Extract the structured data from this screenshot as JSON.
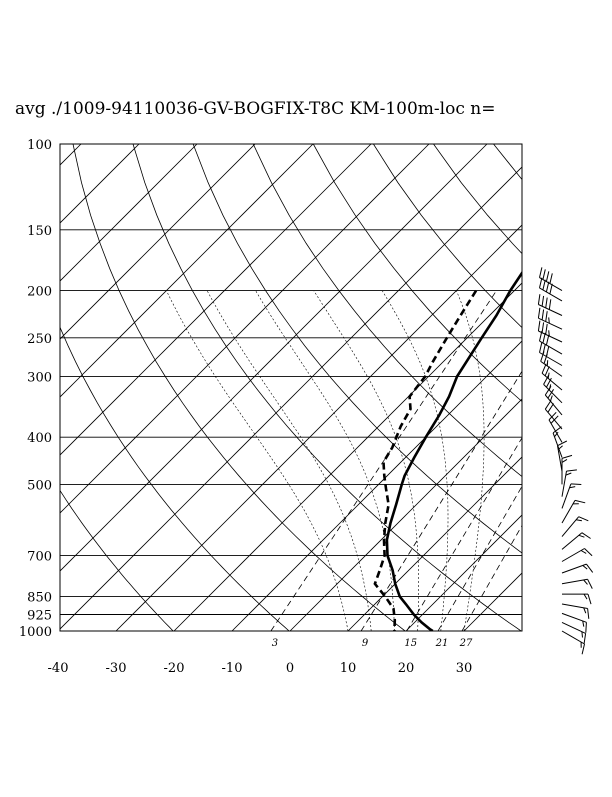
{
  "chart_data": {
    "type": "line",
    "title": "avg ./1009-94110036-GV-BOGFIX-T8C KM-100m-loc n=",
    "xlim": [
      -40,
      40
    ],
    "ylim": [
      1000,
      100
    ],
    "y_scale": "log",
    "x_tick_labels": [
      "-40",
      "-30",
      "-20",
      "-10",
      "0",
      "10",
      "20",
      "30"
    ],
    "x_ticks": [
      -40,
      -30,
      -20,
      -10,
      0,
      10,
      20,
      30
    ],
    "y_tick_labels": [
      "100",
      "150",
      "200",
      "250",
      "300",
      "400",
      "500",
      "700",
      "850",
      "925",
      "1000"
    ],
    "y_ticks": [
      100,
      150,
      200,
      250,
      300,
      400,
      500,
      700,
      850,
      925,
      1000
    ],
    "mixing_ratio_labels": [
      {
        "text": "3",
        "value": 3
      },
      {
        "text": "9",
        "value": 9
      },
      {
        "text": "15",
        "value": 15
      },
      {
        "text": "21",
        "value": 21
      },
      {
        "text": "27",
        "value": 27
      }
    ],
    "series": [
      {
        "style": "solid",
        "points": [
          [
            100,
            -13.0
          ],
          [
            110,
            -17.0
          ],
          [
            122,
            -21.0
          ],
          [
            135,
            -24.0
          ],
          [
            150,
            -23.9
          ],
          [
            165,
            -23.3
          ],
          [
            180,
            -22.0
          ],
          [
            200,
            -20.7
          ],
          [
            225,
            -18.8
          ],
          [
            250,
            -17.5
          ],
          [
            280,
            -16.0
          ],
          [
            300,
            -15.1
          ],
          [
            330,
            -13.0
          ],
          [
            360,
            -11.5
          ],
          [
            400,
            -10.0
          ],
          [
            440,
            -8.5
          ],
          [
            480,
            -7.0
          ],
          [
            500,
            -6.0
          ],
          [
            550,
            -3.5
          ],
          [
            600,
            -1.3
          ],
          [
            650,
            1.0
          ],
          [
            700,
            3.8
          ],
          [
            750,
            7.2
          ],
          [
            800,
            10.0
          ],
          [
            850,
            13.0
          ],
          [
            880,
            15.3
          ],
          [
            925,
            18.5
          ],
          [
            960,
            21.2
          ],
          [
            990,
            23.7
          ],
          [
            1000,
            24.6
          ]
        ]
      },
      {
        "style": "dashed",
        "points": [
          [
            200,
            -26.6
          ],
          [
            225,
            -25.0
          ],
          [
            250,
            -23.5
          ],
          [
            280,
            -21.8
          ],
          [
            300,
            -20.6
          ],
          [
            330,
            -19.8
          ],
          [
            350,
            -17.5
          ],
          [
            380,
            -16.2
          ],
          [
            420,
            -14.0
          ],
          [
            450,
            -13.0
          ],
          [
            480,
            -10.5
          ],
          [
            510,
            -8.0
          ],
          [
            550,
            -4.8
          ],
          [
            600,
            -2.2
          ],
          [
            650,
            0.5
          ],
          [
            700,
            3.3
          ],
          [
            750,
            5.0
          ],
          [
            800,
            6.5
          ],
          [
            850,
            10.5
          ],
          [
            900,
            14.0
          ],
          [
            950,
            16.2
          ],
          [
            1000,
            18.0
          ]
        ]
      }
    ],
    "wind_barbs": [
      {
        "p": 200,
        "dir": 300,
        "spd": 40
      },
      {
        "p": 210,
        "dir": 300,
        "spd": 40
      },
      {
        "p": 225,
        "dir": 295,
        "spd": 40
      },
      {
        "p": 240,
        "dir": 295,
        "spd": 35
      },
      {
        "p": 255,
        "dir": 295,
        "spd": 35
      },
      {
        "p": 270,
        "dir": 300,
        "spd": 30
      },
      {
        "p": 285,
        "dir": 300,
        "spd": 30
      },
      {
        "p": 300,
        "dir": 305,
        "spd": 25
      },
      {
        "p": 320,
        "dir": 310,
        "spd": 25
      },
      {
        "p": 340,
        "dir": 315,
        "spd": 25
      },
      {
        "p": 360,
        "dir": 320,
        "spd": 25
      },
      {
        "p": 385,
        "dir": 320,
        "spd": 20
      },
      {
        "p": 410,
        "dir": 330,
        "spd": 20
      },
      {
        "p": 440,
        "dir": 340,
        "spd": 15
      },
      {
        "p": 470,
        "dir": 350,
        "spd": 15
      },
      {
        "p": 500,
        "dir": 0,
        "spd": 15
      },
      {
        "p": 530,
        "dir": 10,
        "spd": 15
      },
      {
        "p": 560,
        "dir": 20,
        "spd": 15
      },
      {
        "p": 600,
        "dir": 30,
        "spd": 15
      },
      {
        "p": 640,
        "dir": 40,
        "spd": 15
      },
      {
        "p": 680,
        "dir": 50,
        "spd": 15
      },
      {
        "p": 720,
        "dir": 60,
        "spd": 15
      },
      {
        "p": 760,
        "dir": 70,
        "spd": 15
      },
      {
        "p": 800,
        "dir": 80,
        "spd": 15
      },
      {
        "p": 840,
        "dir": 90,
        "spd": 15
      },
      {
        "p": 880,
        "dir": 100,
        "spd": 15
      },
      {
        "p": 920,
        "dir": 110,
        "spd": 15
      },
      {
        "p": 960,
        "dir": 115,
        "spd": 15
      },
      {
        "p": 1000,
        "dir": 120,
        "spd": 15
      }
    ]
  }
}
